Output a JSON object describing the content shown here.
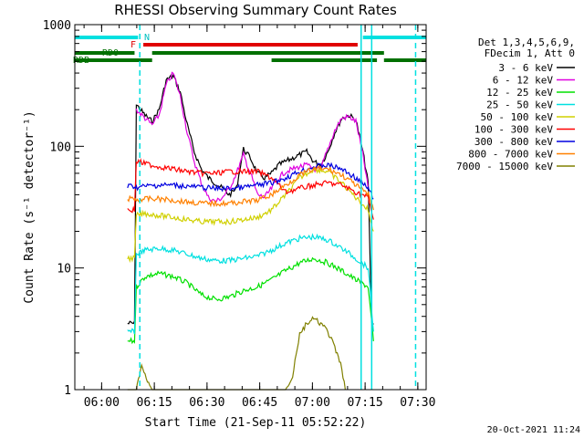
{
  "chart_data": {
    "type": "line",
    "title": "RHESSI Observing Summary Count Rates",
    "xlabel": "Start Time (21-Sep-11 05:52:22)",
    "ylabel": "Count Rate (s⁻¹ detector⁻¹)",
    "y_scale": "log",
    "ylim": [
      1,
      1000
    ],
    "xlim_minutes_after_start": [
      0,
      100
    ],
    "x_tick_labels": [
      "06:00",
      "06:15",
      "06:30",
      "06:45",
      "07:00",
      "07:15",
      "07:30"
    ],
    "x_tick_minutes": [
      7.63,
      22.63,
      37.63,
      52.63,
      67.63,
      82.63,
      97.63
    ],
    "y_tick_labels": [
      "1",
      "10",
      "100",
      "1000"
    ],
    "y_tick_values": [
      1,
      10,
      100,
      1000
    ],
    "legend_header": [
      "Det 1,3,4,5,6,9,",
      "FDecim 1, Att 0"
    ],
    "legend_placement": "right",
    "footer_date": "20-Oct-2021 11:24",
    "flag_labels": {
      "N": "N",
      "F": "F",
      "RD0": "RD0",
      "RDB": "RDB"
    },
    "series": [
      {
        "name": "3 - 6 keV",
        "color": "#000000",
        "x": [
          15,
          16,
          17,
          17.5,
          20,
          22,
          24,
          26,
          28,
          30,
          32,
          34,
          36,
          38,
          40,
          42,
          44,
          46,
          48,
          50,
          52,
          54,
          56,
          58,
          60,
          62,
          64,
          66,
          68,
          70,
          72,
          74,
          76,
          78,
          80,
          82,
          83.5,
          84.5,
          85
        ],
        "y": [
          3.5,
          3.5,
          3.5,
          220,
          180,
          160,
          200,
          350,
          380,
          280,
          150,
          90,
          65,
          55,
          50,
          45,
          40,
          45,
          95,
          80,
          60,
          55,
          60,
          70,
          75,
          80,
          85,
          90,
          75,
          70,
          90,
          130,
          170,
          180,
          165,
          90,
          50,
          3.5,
          3.5
        ]
      },
      {
        "name": "6 - 12 keV",
        "color": "#e000e0",
        "x": [
          17.5,
          20,
          22,
          24,
          26,
          28,
          30,
          32,
          34,
          36,
          38,
          40,
          42,
          44,
          46,
          48,
          50,
          52,
          54,
          56,
          58,
          60,
          62,
          64,
          66,
          68,
          70,
          72,
          74,
          76,
          78,
          80,
          82,
          83.5
        ],
        "y": [
          200,
          170,
          150,
          180,
          320,
          400,
          260,
          130,
          75,
          50,
          38,
          35,
          38,
          45,
          60,
          85,
          60,
          40,
          38,
          45,
          55,
          62,
          65,
          68,
          70,
          65,
          65,
          95,
          135,
          170,
          175,
          160,
          85,
          45
        ]
      },
      {
        "name": "12 - 25 keV",
        "color": "#00e000",
        "x": [
          15,
          17,
          17.5,
          20,
          24,
          28,
          32,
          36,
          40,
          44,
          48,
          52,
          56,
          60,
          64,
          68,
          72,
          76,
          80,
          83.5,
          85
        ],
        "y": [
          2.5,
          2.5,
          7,
          8.5,
          9,
          8.5,
          7.5,
          6,
          5.5,
          5.8,
          6.5,
          7,
          8,
          9.5,
          11,
          12,
          11,
          9.5,
          8,
          7,
          2.5
        ]
      },
      {
        "name": "25 - 50 keV",
        "color": "#00e0e0",
        "x": [
          15,
          17,
          17.5,
          20,
          24,
          28,
          32,
          36,
          40,
          44,
          48,
          52,
          56,
          60,
          64,
          68,
          72,
          76,
          80,
          83.5,
          85
        ],
        "y": [
          3,
          3,
          13,
          14,
          14.5,
          14,
          13,
          12,
          11.5,
          11.5,
          12,
          12.5,
          14,
          16,
          17.5,
          18,
          17,
          14.5,
          12,
          10,
          3
        ]
      },
      {
        "name": "50 - 100 keV",
        "color": "#d0d000",
        "x": [
          15,
          17,
          17.5,
          20,
          24,
          28,
          32,
          36,
          40,
          44,
          48,
          52,
          56,
          60,
          64,
          68,
          72,
          76,
          80,
          83.5,
          85
        ],
        "y": [
          12,
          12,
          27,
          28,
          27,
          26,
          25,
          24,
          24,
          24,
          25,
          26,
          30,
          40,
          55,
          65,
          62,
          50,
          38,
          30,
          20
        ]
      },
      {
        "name": "100 - 300 keV",
        "color": "#ff0000",
        "x": [
          15,
          17,
          17.5,
          20,
          24,
          28,
          32,
          36,
          40,
          44,
          48,
          52,
          56,
          60,
          64,
          68,
          72,
          76,
          80,
          83.5,
          85
        ],
        "y": [
          30,
          30,
          75,
          72,
          68,
          65,
          62,
          60,
          60,
          62,
          62,
          62,
          55,
          42,
          45,
          48,
          50,
          48,
          42,
          38,
          25
        ]
      },
      {
        "name": "300 - 800 keV",
        "color": "#0000e0",
        "x": [
          15,
          17,
          17.5,
          20,
          24,
          28,
          32,
          36,
          40,
          44,
          48,
          52,
          56,
          60,
          64,
          68,
          72,
          76,
          80,
          83.5,
          85
        ],
        "y": [
          47,
          47,
          46,
          47,
          48,
          48,
          47,
          46,
          45,
          45,
          46,
          48,
          50,
          55,
          62,
          68,
          70,
          65,
          55,
          45,
          37
        ]
      },
      {
        "name": "800 - 7000 keV",
        "color": "#ff8000",
        "x": [
          15,
          17,
          17.5,
          20,
          24,
          28,
          32,
          36,
          40,
          44,
          48,
          52,
          56,
          60,
          64,
          68,
          72,
          76,
          80,
          83.5,
          85
        ],
        "y": [
          37,
          37,
          36,
          37,
          37,
          36,
          35,
          34,
          34,
          34,
          35,
          36,
          40,
          48,
          58,
          65,
          65,
          58,
          48,
          40,
          30
        ]
      },
      {
        "name": "7000 - 15000 keV",
        "color": "#808000",
        "x": [
          15,
          17,
          17.5,
          19,
          20,
          22,
          24,
          26,
          28,
          30,
          32,
          34,
          36,
          38,
          40,
          42,
          44,
          46,
          48,
          50,
          52,
          54,
          56,
          58,
          60,
          62,
          63,
          64,
          66,
          68,
          70,
          72,
          74,
          76,
          77
        ],
        "y": [
          1,
          1,
          1,
          1.6,
          1.3,
          1,
          1,
          1,
          1,
          1,
          1,
          1,
          1,
          1,
          1,
          1,
          1,
          1,
          1,
          1,
          1,
          1,
          1,
          1,
          1,
          1.3,
          2,
          2.8,
          3.5,
          3.8,
          3.5,
          3,
          2.2,
          1.5,
          1
        ]
      }
    ],
    "status_bars": [
      {
        "label": "N",
        "color": "#00e0e0",
        "segments": [
          [
            0,
            18
          ],
          [
            82,
            100
          ]
        ]
      },
      {
        "label": "F",
        "color": "#e00000",
        "segments": [
          [
            19.5,
            80.5
          ]
        ]
      },
      {
        "label": "RD0",
        "color": "#007000",
        "segments": [
          [
            0,
            17
          ],
          [
            22,
            88
          ]
        ]
      },
      {
        "label": "RDB",
        "color": "#007000",
        "segments": [
          [
            0,
            22
          ],
          [
            56,
            86
          ],
          [
            88,
            100
          ]
        ]
      }
    ],
    "vertical_markers": [
      {
        "color": "#00e0e0",
        "style": "dashed",
        "x": 18.5
      },
      {
        "color": "#00e0e0",
        "style": "solid",
        "x": 81.5
      },
      {
        "color": "#00e0e0",
        "style": "solid",
        "x": 84.5
      },
      {
        "color": "#00e0e0",
        "style": "dashed",
        "x": 97
      }
    ],
    "grid": false
  }
}
